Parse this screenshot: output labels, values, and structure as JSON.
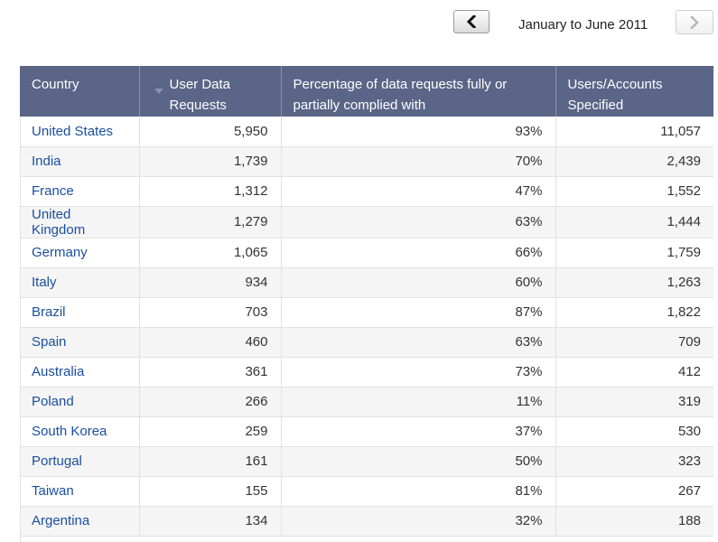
{
  "nav": {
    "prev_icon": "chevron-left-icon",
    "next_icon": "chevron-right-icon",
    "period": "January to June 2011"
  },
  "table": {
    "headers": {
      "country": "Country",
      "requests": "User Data Requests",
      "percentage": "Percentage of data requests fully or partially complied with",
      "users": "Users/Accounts Specified"
    },
    "sort_icon": "sort-down-arrow-icon",
    "rows": [
      {
        "country": "United States",
        "requests": "5,950",
        "percentage": "93%",
        "users": "11,057"
      },
      {
        "country": "India",
        "requests": "1,739",
        "percentage": "70%",
        "users": "2,439"
      },
      {
        "country": "France",
        "requests": "1,312",
        "percentage": "47%",
        "users": "1,552"
      },
      {
        "country": "United Kingdom",
        "requests": "1,279",
        "percentage": "63%",
        "users": "1,444"
      },
      {
        "country": "Germany",
        "requests": "1,065",
        "percentage": "66%",
        "users": "1,759"
      },
      {
        "country": "Italy",
        "requests": "934",
        "percentage": "60%",
        "users": "1,263"
      },
      {
        "country": "Brazil",
        "requests": "703",
        "percentage": "87%",
        "users": "1,822"
      },
      {
        "country": "Spain",
        "requests": "460",
        "percentage": "63%",
        "users": "709"
      },
      {
        "country": "Australia",
        "requests": "361",
        "percentage": "73%",
        "users": "412"
      },
      {
        "country": "Poland",
        "requests": "266",
        "percentage": "11%",
        "users": "319"
      },
      {
        "country": "South Korea",
        "requests": "259",
        "percentage": "37%",
        "users": "530"
      },
      {
        "country": "Portugal",
        "requests": "161",
        "percentage": "50%",
        "users": "323"
      },
      {
        "country": "Taiwan",
        "requests": "155",
        "percentage": "81%",
        "users": "267"
      },
      {
        "country": "Argentina",
        "requests": "134",
        "percentage": "32%",
        "users": "188"
      }
    ]
  },
  "colors": {
    "header_bg": "#5a6587",
    "link": "#1a4fa0",
    "stripe": "#f5f5f5"
  }
}
